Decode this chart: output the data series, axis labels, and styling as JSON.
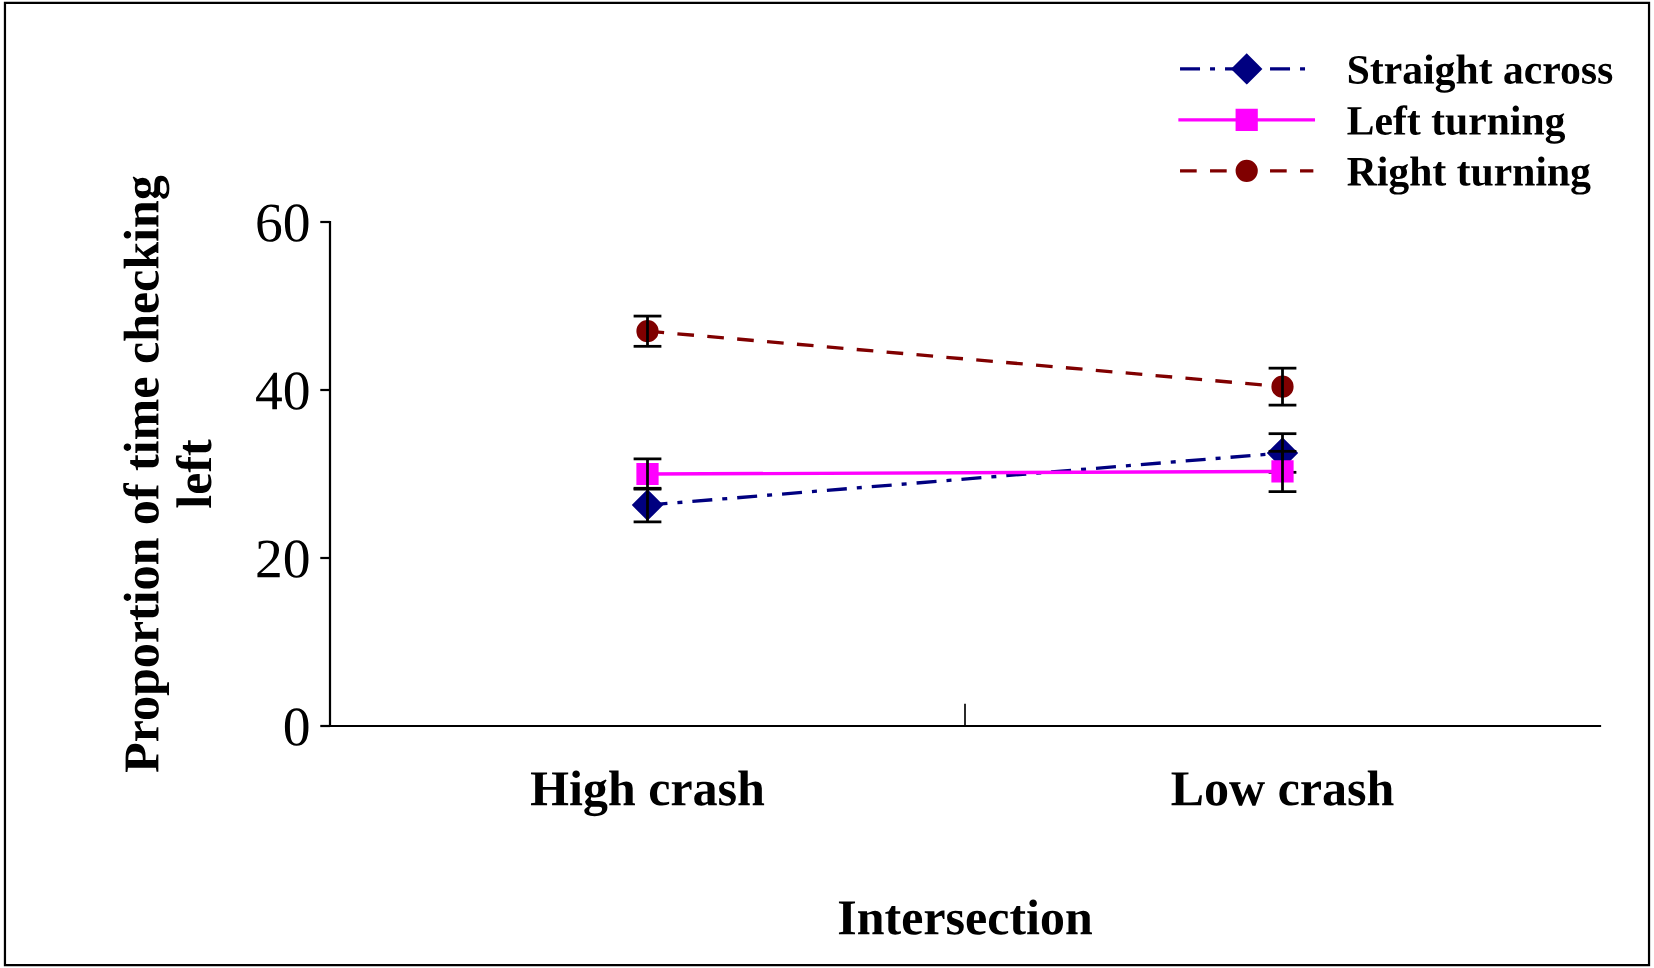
{
  "chart_data": {
    "type": "line",
    "xlabel": "Intersection",
    "ylabel": "Proportion of time checking\nleft",
    "categories": [
      "High crash",
      "Low crash"
    ],
    "series": [
      {
        "name": "Straight across",
        "color": "#000080",
        "values": [
          26.3,
          32.5
        ],
        "errors": [
          2.0,
          2.3
        ],
        "marker": "diamond",
        "line_style": "dashdot"
      },
      {
        "name": "Left turning",
        "color": "#ff00ff",
        "values": [
          30.0,
          30.3
        ],
        "errors": [
          1.8,
          2.4
        ],
        "marker": "square",
        "line_style": "solid"
      },
      {
        "name": "Right turning",
        "color": "#800000",
        "values": [
          47.0,
          40.4
        ],
        "errors": [
          1.8,
          2.2
        ],
        "marker": "circle",
        "line_style": "dashed"
      }
    ],
    "ylim": [
      0,
      60
    ],
    "yticks": [
      0,
      20,
      40,
      60
    ],
    "grid": false,
    "legend": "top right"
  }
}
